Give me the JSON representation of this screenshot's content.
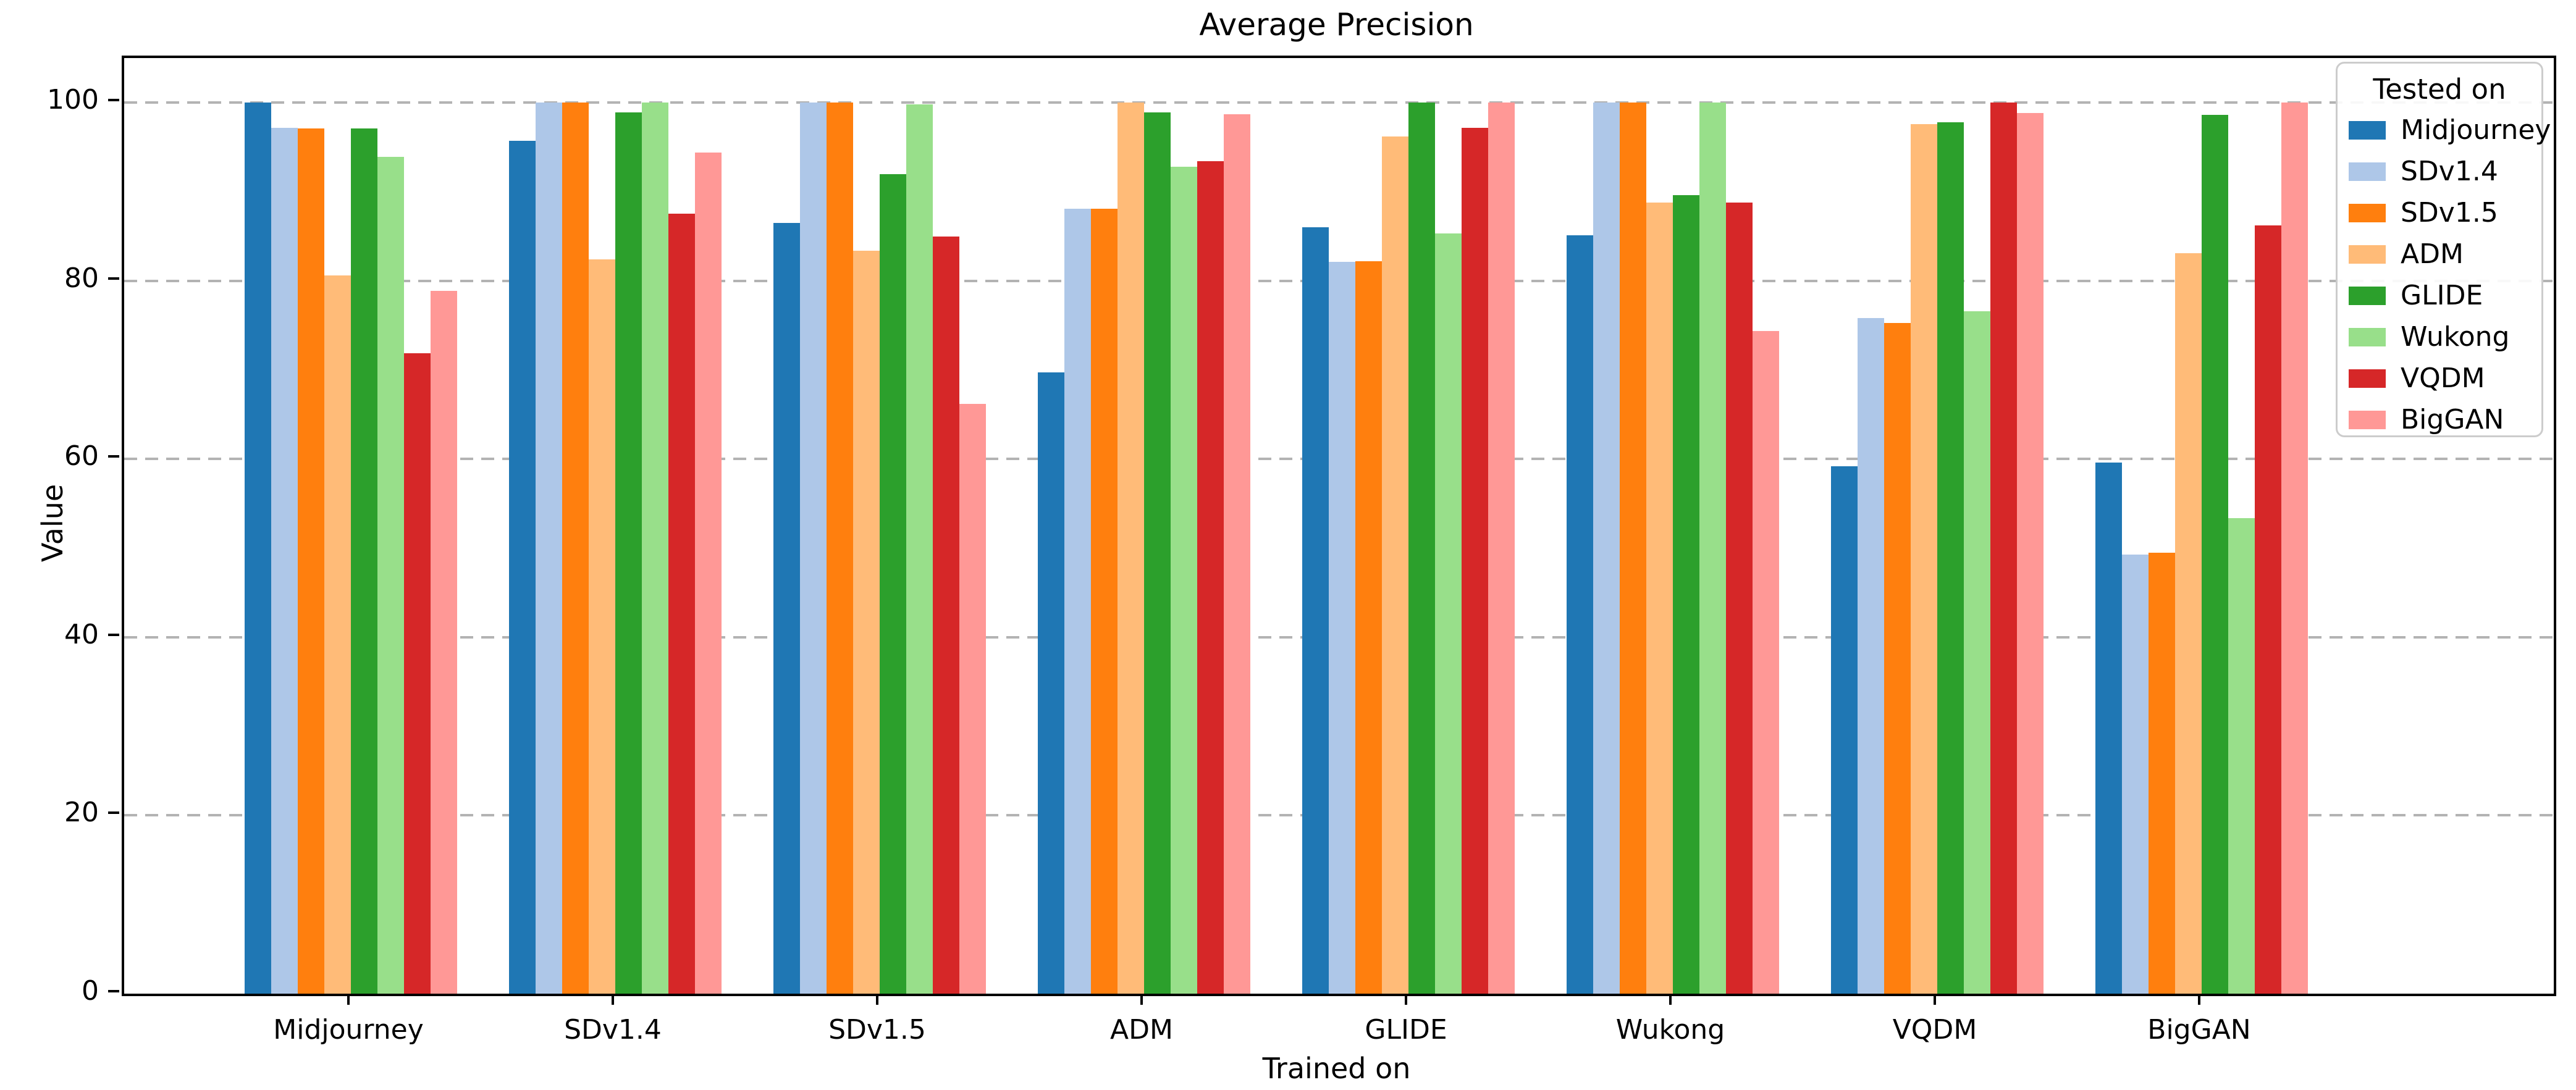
{
  "figure": {
    "title": "Average Precision"
  },
  "chart_data": {
    "type": "bar",
    "title": "Average Precision",
    "xlabel": "Trained on",
    "ylabel": "Value",
    "ylim": [
      0,
      105
    ],
    "yticks": [
      0,
      20,
      40,
      60,
      80,
      100
    ],
    "grid": "horizontal dashed gridlines at y=20,40,60,80,100",
    "legend": {
      "title": "Tested on",
      "position": "upper right"
    },
    "categories": [
      "Midjourney",
      "SDv1.4",
      "SDv1.5",
      "ADM",
      "GLIDE",
      "Wukong",
      "VQDM",
      "BigGAN"
    ],
    "series": [
      {
        "name": "Midjourney",
        "color": "#1f77b4",
        "values": [
          100,
          95.7,
          86.5,
          69.7,
          86.0,
          85.1,
          59.2,
          59.6
        ]
      },
      {
        "name": "SDv1.4",
        "color": "#aec7e8",
        "values": [
          97.2,
          100,
          100,
          88.1,
          82.1,
          100,
          75.8,
          49.3
        ]
      },
      {
        "name": "SDv1.5",
        "color": "#ff7f0e",
        "values": [
          97.1,
          100,
          100,
          88.1,
          82.2,
          100,
          75.3,
          49.5
        ]
      },
      {
        "name": "ADM",
        "color": "#ffbb78",
        "values": [
          80.6,
          82.4,
          83.4,
          100,
          96.2,
          88.8,
          97.6,
          83.1
        ]
      },
      {
        "name": "GLIDE",
        "color": "#2ca02c",
        "values": [
          97.1,
          98.9,
          92.0,
          98.9,
          100,
          89.6,
          97.8,
          98.6
        ]
      },
      {
        "name": "Wukong",
        "color": "#98df8a",
        "values": [
          93.9,
          100,
          99.8,
          92.8,
          85.3,
          100,
          76.6,
          53.4
        ]
      },
      {
        "name": "VQDM",
        "color": "#d62728",
        "values": [
          71.9,
          87.5,
          85.0,
          93.4,
          97.2,
          88.8,
          100,
          86.2
        ]
      },
      {
        "name": "BigGAN",
        "color": "#ff9896",
        "values": [
          78.9,
          94.4,
          66.2,
          98.7,
          100,
          74.4,
          98.8,
          100
        ]
      }
    ]
  }
}
